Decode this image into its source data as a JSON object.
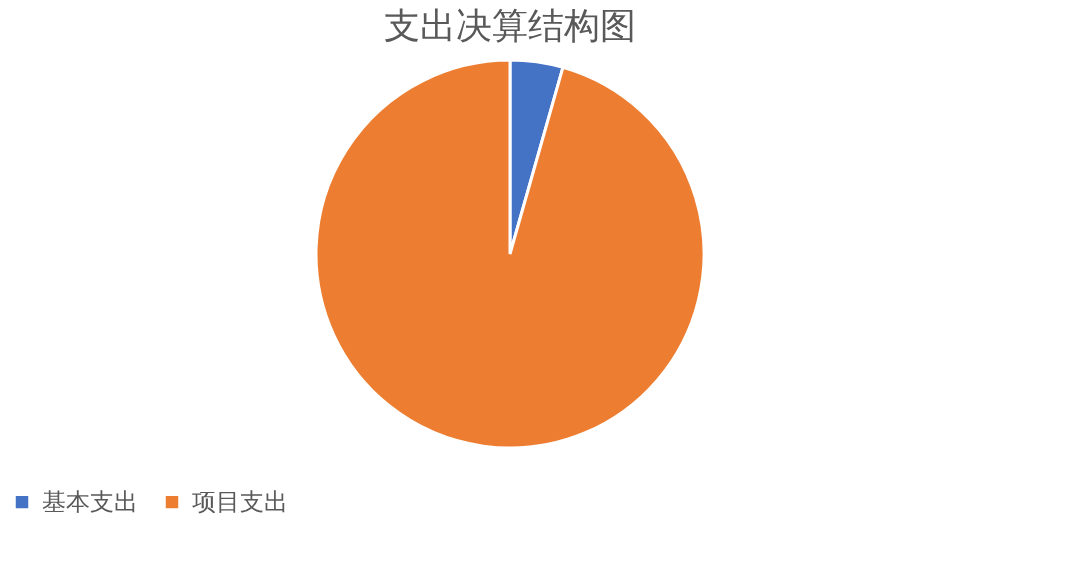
{
  "chart_data": {
    "type": "pie",
    "title": "支出决算结构图",
    "categories": [
      "基本支出",
      "项目支出"
    ],
    "values": [
      4.4,
      95.6
    ],
    "colors": [
      "#4472c4",
      "#ed7d31"
    ],
    "legend": "bottom"
  }
}
